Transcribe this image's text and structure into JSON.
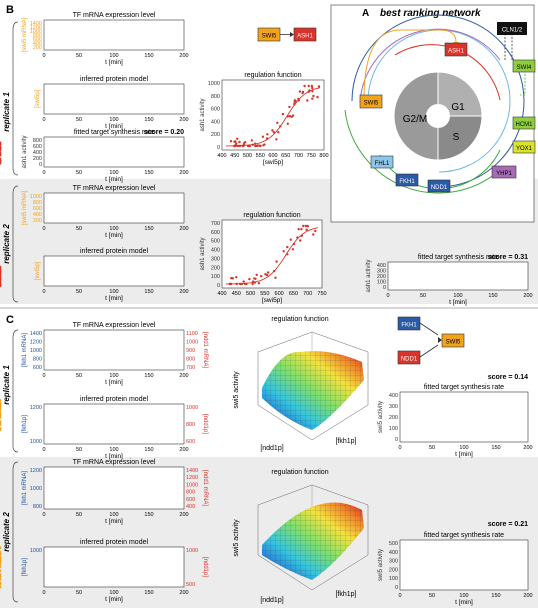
{
  "panel_letters": {
    "a": "A",
    "b": "B",
    "c": "C"
  },
  "replicates": {
    "r1": "replicate 1",
    "r2": "replicate 2"
  },
  "titles": {
    "tf_mrna": "TF mRNA expression level",
    "protein": "inferred protein model",
    "regulation": "regulation function",
    "fitted": "fitted target synthesis rate",
    "best_network": "best ranking network"
  },
  "axes": {
    "t_min": "t [min]",
    "swi5_mrna": "[swi5 mRNA]",
    "swi5p_axis": "[swi5p]",
    "swi5p_bracket": "[swi5p]",
    "ash1_activity": "ash1 activity",
    "fkh1_mrna": "[fkh1 mRNA]",
    "ndd1_mrna": "[ndd1 mRNA]",
    "fkh1p": "[fkh1p]",
    "ndd1p": "[ndd1p]",
    "swi5_activity": "swi5 activity"
  },
  "scores": {
    "b_r1": "score = 0.20",
    "b_r2": "score = 0.31",
    "c_r1": "score = 0.14",
    "c_r2": "score = 0.21"
  },
  "nodes": {
    "swi5": "SWI5",
    "ash1": "ASH1",
    "cln": "CLN1/2",
    "swi4": "SWI4",
    "hcm1": "HCM1",
    "yox1": "YOX1",
    "yhp1": "YHP1",
    "ndd1": "NDD1",
    "fkh1": "FKH1",
    "fhl1": "FHL1"
  },
  "cycle": {
    "g1": "G1",
    "s": "S",
    "g2m": "G2/M"
  },
  "ticks": {
    "time": [
      "0",
      "50",
      "100",
      "150",
      "200"
    ],
    "b_r1_mrna_y": [
      "1400",
      "1200",
      "1000",
      "800",
      "600",
      "400",
      "200"
    ],
    "b_r1_reg_x": [
      "400",
      "450",
      "500",
      "550",
      "600",
      "650",
      "700",
      "750",
      "800"
    ],
    "b_r1_reg_y": [
      "1000",
      "800",
      "600",
      "400",
      "200",
      "0"
    ],
    "b_r1_fit_y": [
      "800",
      "600",
      "400",
      "200",
      "0"
    ],
    "b_r2_mrna_y": [
      "1000",
      "800",
      "600",
      "400",
      "200"
    ],
    "b_r2_reg_x": [
      "400",
      "450",
      "500",
      "550",
      "600",
      "650",
      "700",
      "750"
    ],
    "b_r2_reg_y": [
      "700",
      "600",
      "500",
      "400",
      "300",
      "200",
      "100",
      "0"
    ],
    "b_r2_fit_y": [
      "400",
      "300",
      "200",
      "100",
      "0"
    ],
    "c_r1_fkh_mrna": [
      "1400",
      "1200",
      "1000",
      "800",
      "600"
    ],
    "c_r1_ndd_mrna": [
      "1100",
      "1000",
      "900",
      "800",
      "700"
    ],
    "c_r1_fkh_prot": [
      "1200",
      "1000"
    ],
    "c_r1_ndd_prot": [
      "1000",
      "800",
      "600"
    ],
    "c_fit1_y": [
      "400",
      "300",
      "200",
      "100",
      "0"
    ],
    "c_r2_fkh_mrna": [
      "1200",
      "1000",
      "800"
    ],
    "c_r2_ndd_mrna": [
      "1400",
      "1200",
      "1000",
      "800",
      "600",
      "400"
    ],
    "c_r2_fkh_prot": [
      "1000"
    ],
    "c_r2_ndd_prot": [
      "1000",
      "500"
    ],
    "c_fit2_y": [
      "500",
      "400",
      "300",
      "200",
      "100",
      "0"
    ],
    "surf1_z": [
      "400",
      "300",
      "200",
      "100",
      "0"
    ],
    "surf1_x": [
      "900",
      "800",
      "700",
      "600",
      "500"
    ],
    "surf1_y": [
      "1000",
      "1100",
      "1200",
      "1300"
    ],
    "surf2_z": [
      "500",
      "400",
      "300",
      "200",
      "100",
      "0"
    ],
    "surf2_x": [
      "900",
      "800",
      "700",
      "600",
      "500"
    ],
    "surf2_y": [
      "1000",
      "1200"
    ]
  },
  "colors": {
    "orange": "#f2a31d",
    "red_series": "#d9342b",
    "blue_series": "#1f4e99",
    "panel_gray": "#ececec",
    "ash1_fill": "#d9342b",
    "swi5_fill": "#f2a31d",
    "green_fill": "#8fcf3e",
    "yellow_fill": "#d9e32c",
    "purple_fill": "#a66bb5",
    "blue_fill": "#2b5aa6",
    "lightblue_fill": "#8ec5ea"
  },
  "chart_data": []
}
